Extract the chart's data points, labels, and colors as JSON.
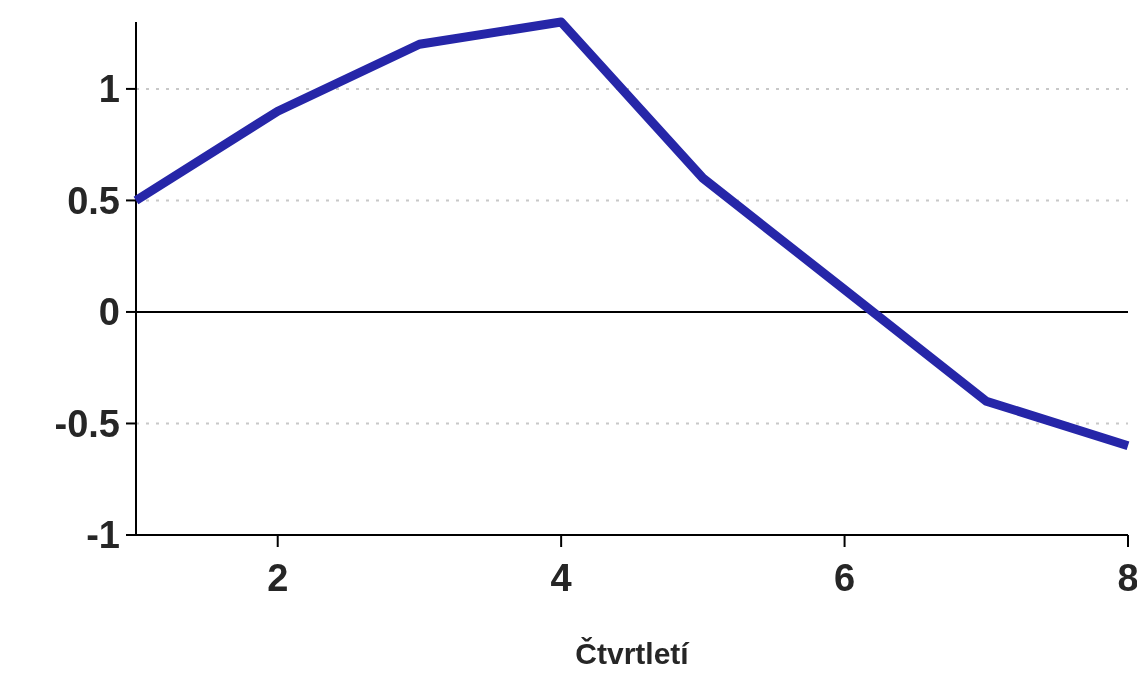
{
  "chart_data": {
    "type": "line",
    "xlabel": "Čtvrtletí",
    "x": [
      1,
      2,
      3,
      4,
      5,
      6,
      7,
      8
    ],
    "series": [
      {
        "color": "#2626a8",
        "values": [
          0.5,
          0.9,
          1.2,
          1.3,
          0.6,
          0.1,
          -0.4,
          -0.6
        ]
      }
    ],
    "xlim": [
      1,
      8
    ],
    "xticks": [
      2,
      4,
      6,
      8
    ],
    "ylim": [
      -1,
      1.3
    ],
    "yticks": [
      -1,
      -0.5,
      0,
      0.5,
      1
    ],
    "grid": "y",
    "ref_lines": [
      {
        "axis": "y",
        "value": 0,
        "color": "#000000",
        "line_style": "solid"
      }
    ],
    "marker": "none",
    "line_style": "solid"
  }
}
